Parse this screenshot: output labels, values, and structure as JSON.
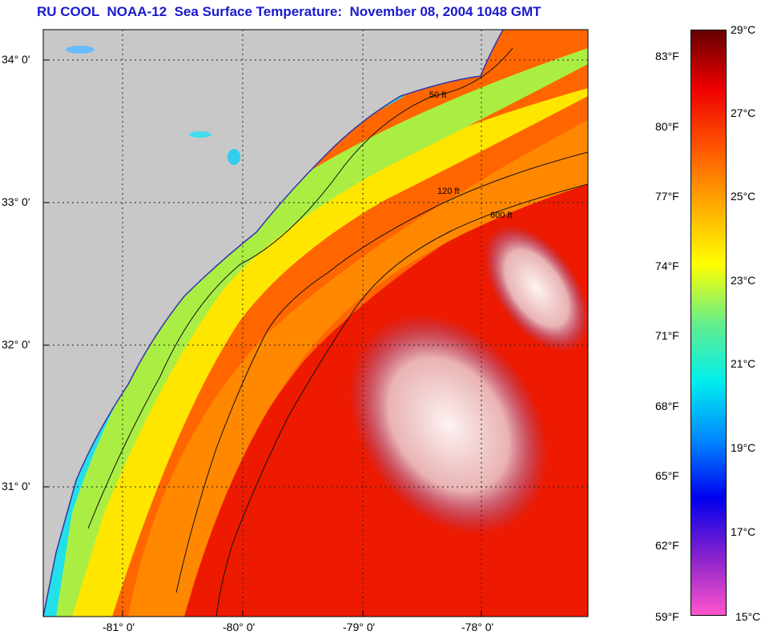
{
  "title": "RU COOL  NOAA-12  Sea Surface Temperature:  November 08, 2004 1048 GMT",
  "map": {
    "lat_ticks": [
      {
        "label": "34° 0'",
        "value": 34
      },
      {
        "label": "33° 0'",
        "value": 33
      },
      {
        "label": "32° 0'",
        "value": 32
      },
      {
        "label": "31° 0'",
        "value": 31
      }
    ],
    "lon_ticks": [
      {
        "label": "-81° 0'",
        "value": -81
      },
      {
        "label": "-80° 0'",
        "value": -80
      },
      {
        "label": "-79° 0'",
        "value": -79
      },
      {
        "label": "-78° 0'",
        "value": -78
      }
    ],
    "contour_labels": [
      "50 ft",
      "120 ft",
      "600 ft"
    ],
    "land_color": "#c8c8c8"
  },
  "colorbar": {
    "fahrenheit_labels": [
      "83°F",
      "80°F",
      "77°F",
      "74°F",
      "71°F",
      "68°F",
      "65°F",
      "62°F",
      "59°F"
    ],
    "celsius_labels": [
      "29°C",
      "27°C",
      "25°C",
      "23°C",
      "21°C",
      "19°C",
      "17°C",
      "15°C"
    ],
    "range_c": [
      15,
      29
    ],
    "colors": [
      "#ff55cc",
      "#8822cc",
      "#0000ee",
      "#0088ff",
      "#00eeee",
      "#66ee88",
      "#ffff00",
      "#ffaa00",
      "#ff5500",
      "#ee0000",
      "#660000"
    ]
  }
}
